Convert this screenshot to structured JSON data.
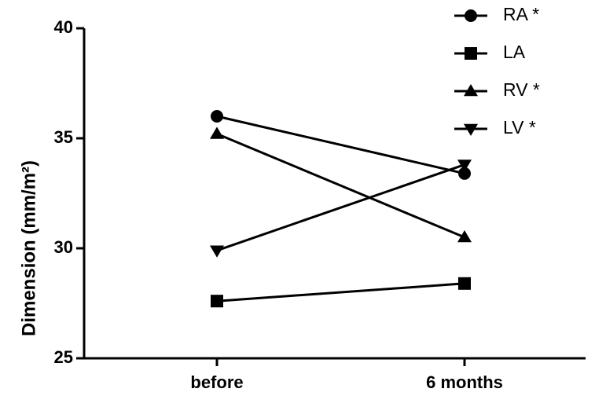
{
  "chart_data": {
    "type": "line",
    "y_label": "Dimension (mm/m²)",
    "categories": [
      "before",
      "6 months"
    ],
    "series": [
      {
        "name": "RA *",
        "color": "#000000",
        "marker": "circle",
        "values": [
          36.0,
          33.4
        ]
      },
      {
        "name": "LA",
        "color": "#000000",
        "marker": "square",
        "values": [
          27.6,
          28.4
        ]
      },
      {
        "name": "RV *",
        "color": "#000000",
        "marker": "triangle-up",
        "values": [
          35.2,
          30.5
        ]
      },
      {
        "name": "LV *",
        "color": "#000000",
        "marker": "triangle-down",
        "values": [
          29.9,
          33.8
        ]
      }
    ],
    "ylim": [
      25,
      40
    ],
    "yticks": [
      25,
      30,
      35,
      40
    ],
    "grid": false,
    "legend": "top-right"
  }
}
